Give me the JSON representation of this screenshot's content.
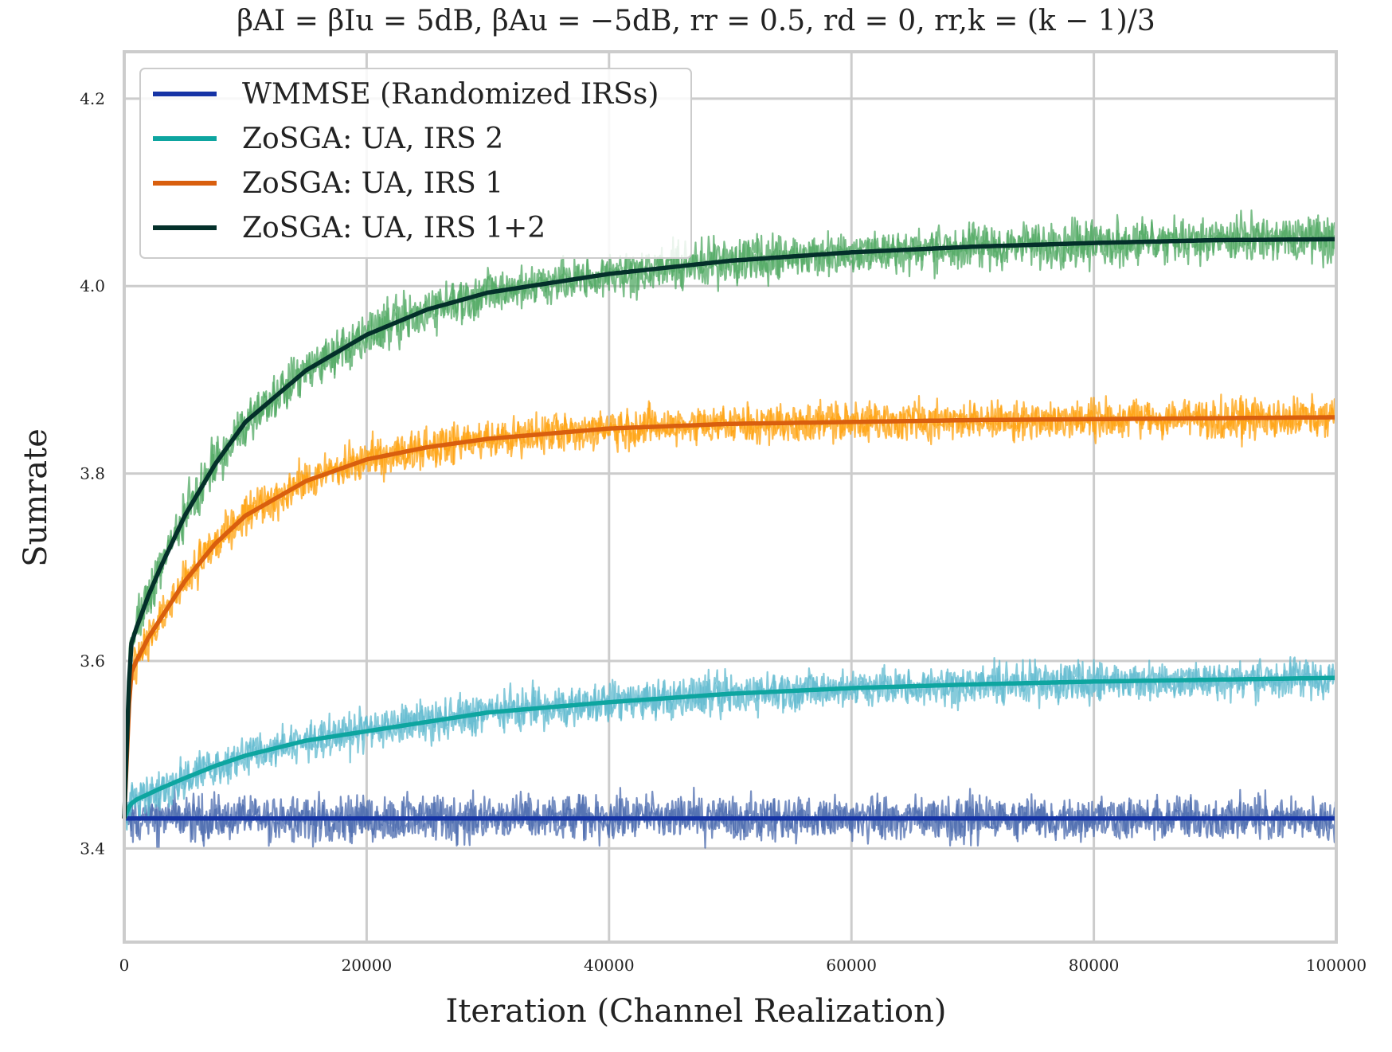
{
  "chart_data": {
    "type": "line",
    "title": "βAI = βIu = 5dB, βAu = −5dB, rr = 0.5, rd = 0, rr,k = (k − 1)/3",
    "xlabel": "Iteration (Channel Realization)",
    "ylabel": "Sumrate",
    "xlim": [
      0,
      100000
    ],
    "ylim": [
      3.3,
      4.25
    ],
    "xticks": [
      0,
      20000,
      40000,
      60000,
      80000,
      100000
    ],
    "xtick_labels": [
      "0",
      "20000",
      "40000",
      "60000",
      "80000",
      "100000"
    ],
    "yticks": [
      3.4,
      3.6,
      3.8,
      4.0,
      4.2
    ],
    "ytick_labels": [
      "3.4",
      "3.6",
      "3.8",
      "4.0",
      "4.2"
    ],
    "grid": true,
    "legend_position": "top-left",
    "x": [
      0,
      500,
      1000,
      2000,
      3000,
      5000,
      7500,
      10000,
      15000,
      20000,
      25000,
      30000,
      40000,
      50000,
      60000,
      70000,
      80000,
      90000,
      100000
    ],
    "series": [
      {
        "name": "WMMSE (Randomized IRSs)",
        "color": "#1533a5",
        "noise_color": "#4a69ad",
        "noise_amplitude": 0.04,
        "values": [
          3.432,
          3.432,
          3.432,
          3.432,
          3.432,
          3.432,
          3.432,
          3.432,
          3.432,
          3.432,
          3.432,
          3.432,
          3.432,
          3.432,
          3.432,
          3.432,
          3.432,
          3.432,
          3.432
        ]
      },
      {
        "name": "ZoSGA: UA, IRS 2",
        "color": "#0ea5a0",
        "noise_color": "#5fb9cf",
        "noise_amplitude": 0.035,
        "values": [
          3.432,
          3.447,
          3.452,
          3.458,
          3.464,
          3.475,
          3.488,
          3.499,
          3.515,
          3.525,
          3.535,
          3.545,
          3.556,
          3.565,
          3.571,
          3.575,
          3.578,
          3.58,
          3.582
        ]
      },
      {
        "name": "ZoSGA: UA, IRS 1",
        "color": "#d95f0e",
        "noise_color": "#ffa20e",
        "noise_amplitude": 0.035,
        "values": [
          3.432,
          3.585,
          3.6,
          3.625,
          3.645,
          3.685,
          3.725,
          3.755,
          3.792,
          3.815,
          3.828,
          3.837,
          3.848,
          3.853,
          3.855,
          3.857,
          3.858,
          3.859,
          3.86
        ]
      },
      {
        "name": "ZoSGA: UA, IRS 1+2",
        "color": "#04302a",
        "noise_color": "#4fa862",
        "noise_amplitude": 0.04,
        "values": [
          3.432,
          3.615,
          3.635,
          3.67,
          3.7,
          3.755,
          3.81,
          3.855,
          3.91,
          3.948,
          3.975,
          3.993,
          4.013,
          4.027,
          4.036,
          4.042,
          4.046,
          4.049,
          4.05
        ]
      }
    ]
  }
}
